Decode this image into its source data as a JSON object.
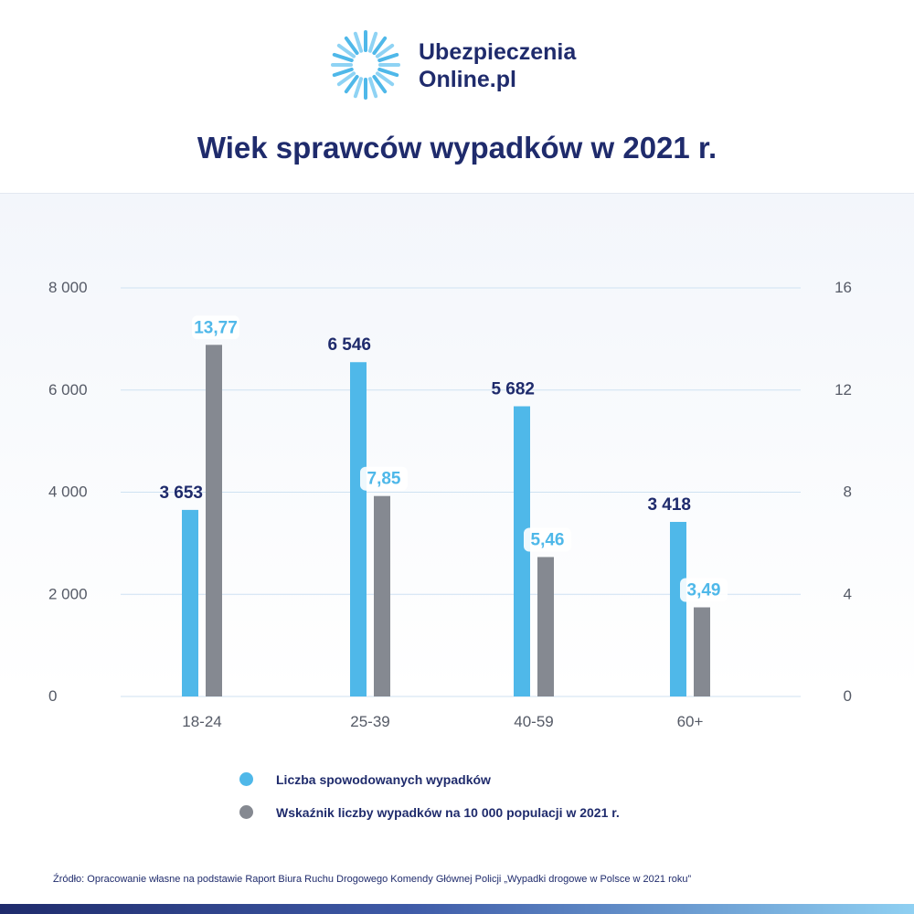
{
  "brand": {
    "name_line1": "Ubezpieczenia",
    "name_line2": "Online.pl",
    "logo_colors": [
      "#4fb8e9",
      "#8fd3f4",
      "#1f2b6c"
    ]
  },
  "colors": {
    "navy": "#1f2b6c",
    "blue_bar": "#4fb8e9",
    "gray_bar": "#858991",
    "grid": "#cfe2f2"
  },
  "chart_data": {
    "type": "bar",
    "title": "Wiek sprawców wypadków w 2021 r.",
    "categories": [
      "18-24",
      "25-39",
      "40-59",
      "60+"
    ],
    "series": [
      {
        "name": "Liczba spowodowanych wypadków",
        "axis": "left",
        "color": "#4fb8e9",
        "values": [
          3653,
          6546,
          5682,
          3418
        ],
        "labels": [
          "3 653",
          "6 546",
          "5 682",
          "3 418"
        ]
      },
      {
        "name": "Wskaźnik liczby wypadków na 10 000 populacji w 2021 r.",
        "axis": "right",
        "color": "#858991",
        "values": [
          13.77,
          7.85,
          5.46,
          3.49
        ],
        "labels": [
          "13,77",
          "7,85",
          "5,46",
          "3,49"
        ]
      }
    ],
    "y_left": {
      "min": 0,
      "max": 8000,
      "ticks": [
        0,
        2000,
        4000,
        6000,
        8000
      ],
      "tick_labels": [
        "0",
        "2 000",
        "4 000",
        "6 000",
        "8 000"
      ]
    },
    "y_right": {
      "min": 0,
      "max": 16,
      "ticks": [
        0,
        4,
        8,
        12,
        16
      ],
      "tick_labels": [
        "0",
        "4",
        "8",
        "12",
        "16"
      ]
    },
    "grid": true,
    "legend_position": "bottom"
  },
  "source": "Źródło: Opracowanie własne na podstawie Raport Biura Ruchu Drogowego Komendy Głównej Policji „Wypadki drogowe w Polsce w 2021 roku”"
}
